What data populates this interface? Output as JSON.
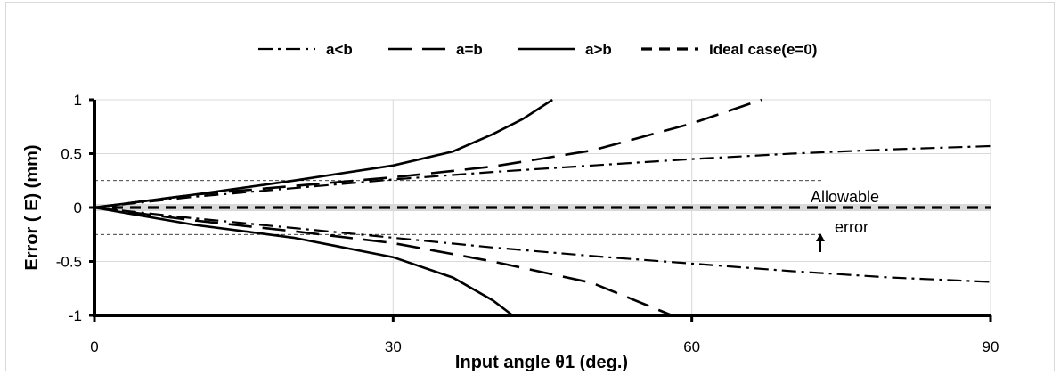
{
  "chart_data": {
    "type": "line",
    "xlabel": "Input angle θ1 (deg.)",
    "ylabel": "Error   ( E)   (mm)",
    "xlim": [
      0,
      90
    ],
    "ylim": [
      -1,
      1
    ],
    "xticks": [
      0,
      30,
      60,
      90
    ],
    "yticks": [
      1,
      0.5,
      0,
      -0.5,
      -1
    ],
    "grid": true,
    "legend_position": "top",
    "allowable_error": 0.25,
    "annotation": {
      "line1": "Allowable",
      "line2": "error"
    },
    "series": [
      {
        "name": "a<b",
        "style": "dash-dot",
        "color": "#000000",
        "segments": [
          {
            "x": [
              0,
              10,
              20,
              30,
              40,
              50,
              60,
              70,
              80,
              90
            ],
            "y": [
              0,
              0.1,
              0.18,
              0.26,
              0.33,
              0.39,
              0.45,
              0.5,
              0.54,
              0.57
            ]
          },
          {
            "x": [
              0,
              10,
              20,
              30,
              40,
              50,
              60,
              70,
              80,
              90
            ],
            "y": [
              0,
              -0.1,
              -0.19,
              -0.28,
              -0.37,
              -0.45,
              -0.52,
              -0.59,
              -0.65,
              -0.69
            ]
          }
        ]
      },
      {
        "name": "a=b",
        "style": "long-dash",
        "color": "#000000",
        "segments": [
          {
            "x": [
              0,
              10,
              20,
              30,
              40,
              50,
              60,
              67
            ],
            "y": [
              0,
              0.12,
              0.2,
              0.28,
              0.38,
              0.53,
              0.78,
              1.0
            ]
          },
          {
            "x": [
              0,
              10,
              20,
              30,
              40,
              50,
              58
            ],
            "y": [
              0,
              -0.12,
              -0.22,
              -0.33,
              -0.5,
              -0.7,
              -1.0
            ]
          }
        ]
      },
      {
        "name": "a>b",
        "style": "solid",
        "color": "#000000",
        "segments": [
          {
            "x": [
              0,
              10,
              20,
              30,
              36,
              40,
              43,
              46
            ],
            "y": [
              0,
              0.12,
              0.25,
              0.39,
              0.52,
              0.68,
              0.82,
              1.0
            ]
          },
          {
            "x": [
              0,
              10,
              20,
              30,
              36,
              40,
              42
            ],
            "y": [
              0,
              -0.16,
              -0.28,
              -0.46,
              -0.65,
              -0.86,
              -1.0
            ]
          }
        ]
      },
      {
        "name": "Ideal case(e=0)",
        "style": "short-dash",
        "color": "#000000",
        "segments": [
          {
            "x": [
              0,
              90
            ],
            "y": [
              0,
              0
            ]
          }
        ]
      }
    ]
  }
}
